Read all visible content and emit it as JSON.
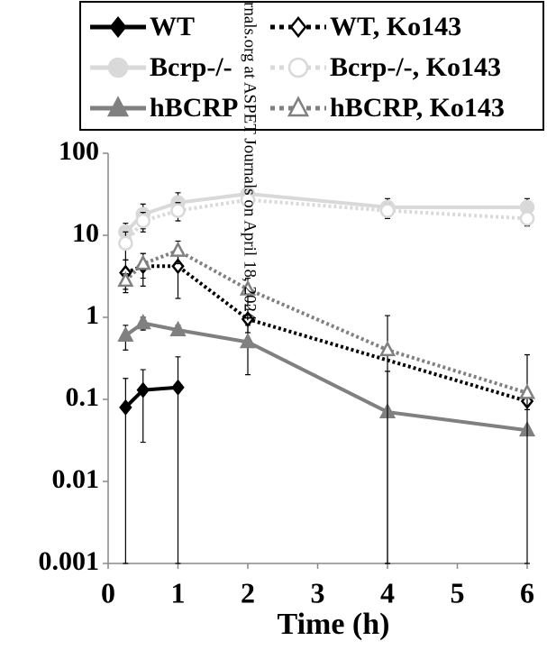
{
  "chart_data": {
    "type": "line",
    "xlabel": "Time (h)",
    "log_y": true,
    "xlim": [
      0,
      6
    ],
    "xticks": [
      0,
      1,
      2,
      3,
      4,
      5,
      6
    ],
    "ylim": [
      0.001,
      100
    ],
    "yticks": [
      0.001,
      0.01,
      0.1,
      1,
      10,
      100
    ],
    "watermark": "rnals.org at ASPET Journals on April 18, 2024",
    "series": [
      {
        "name": "WT",
        "color": "#000000",
        "dash": "solid",
        "marker": "diamond",
        "filled": true,
        "x": [
          0.25,
          0.5,
          1
        ],
        "values": [
          0.08,
          0.13,
          0.14
        ],
        "errors": [
          0.1,
          0.1,
          0.19
        ]
      },
      {
        "name": "Bcrp-/-",
        "color": "#d9d9d9",
        "dash": "solid",
        "marker": "circle",
        "filled": true,
        "x": [
          0.25,
          0.5,
          1,
          2,
          4,
          6
        ],
        "values": [
          11,
          18,
          25,
          32,
          22,
          22
        ],
        "errors": [
          3,
          6,
          8,
          5,
          6,
          6
        ]
      },
      {
        "name": "hBCRP",
        "color": "#808080",
        "dash": "solid",
        "marker": "triangle",
        "filled": true,
        "x": [
          0.25,
          0.5,
          1,
          2,
          4,
          6
        ],
        "values": [
          0.6,
          0.85,
          0.7,
          0.5,
          0.07,
          0.042
        ],
        "errors": [
          0.2,
          0.15,
          0.1,
          0.3,
          0.15,
          0.005
        ]
      },
      {
        "name": "WT, Ko143",
        "color": "#000000",
        "dash": "dotted",
        "marker": "diamond",
        "filled": false,
        "x": [
          0.25,
          0.5,
          1,
          2,
          6
        ],
        "values": [
          3.5,
          4.2,
          4.2,
          0.95,
          0.095
        ],
        "errors": [
          1.5,
          1.8,
          2.5,
          0.3,
          0.02
        ]
      },
      {
        "name": "Bcrp-/-, Ko143",
        "color": "#d9d9d9",
        "dash": "dotted",
        "marker": "circle",
        "filled": false,
        "x": [
          0.25,
          0.5,
          1,
          2,
          4,
          6
        ],
        "values": [
          8,
          15,
          20,
          27,
          20,
          16
        ],
        "errors": [
          3,
          4,
          5,
          4,
          4,
          3
        ]
      },
      {
        "name": "hBCRP, Ko143",
        "color": "#808080",
        "dash": "dotted",
        "marker": "triangle",
        "filled": false,
        "x": [
          0.25,
          0.5,
          1,
          2,
          4,
          6
        ],
        "values": [
          2.8,
          4.5,
          6.5,
          2.2,
          0.4,
          0.12
        ],
        "errors": [
          0.6,
          1.5,
          2,
          0.8,
          0.65,
          0.23
        ]
      }
    ]
  }
}
